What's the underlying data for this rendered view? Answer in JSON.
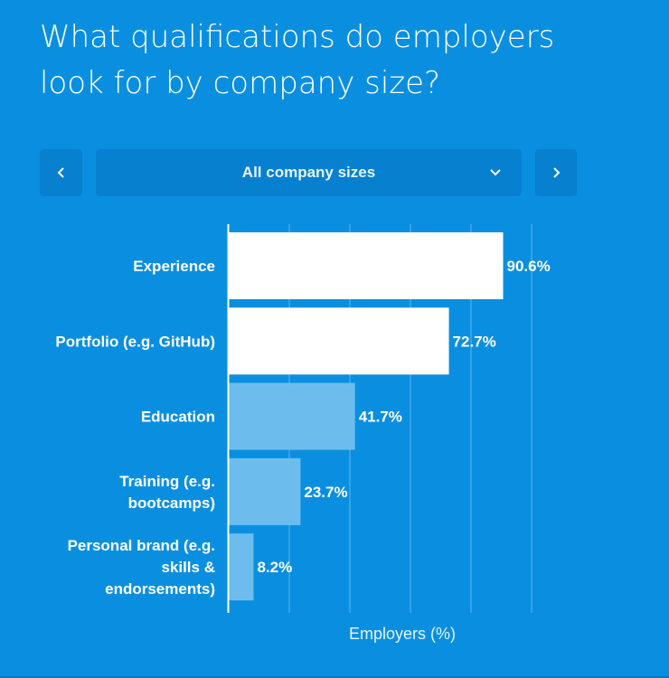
{
  "title": "What qualifications do employers look for by company size?",
  "controls": {
    "prev_icon": "chevron-left-icon",
    "next_icon": "chevron-right-icon",
    "dropdown_icon": "chevron-down-icon",
    "selected": "All company sizes"
  },
  "colors": {
    "background": "#0a8fe0",
    "highlight_bar": "#ffffff",
    "secondary_bar": "#6cbdee",
    "text": "#ffffff"
  },
  "chart_data": {
    "type": "bar",
    "orientation": "horizontal",
    "categories": [
      [
        "Experience"
      ],
      [
        "Portfolio (e.g. GitHub)"
      ],
      [
        "Education"
      ],
      [
        "Training (e.g.",
        "bootcamps)"
      ],
      [
        "Personal brand (e.g.",
        "skills &",
        "endorsements)"
      ]
    ],
    "values": [
      90.6,
      72.7,
      41.7,
      23.7,
      8.2
    ],
    "value_labels": [
      "90.6%",
      "72.7%",
      "41.7%",
      "23.7%",
      "8.2%"
    ],
    "highlighted": [
      true,
      true,
      false,
      false,
      false
    ],
    "xlabel": "Employers (%)",
    "xlim": [
      0,
      100
    ],
    "grid": true
  }
}
